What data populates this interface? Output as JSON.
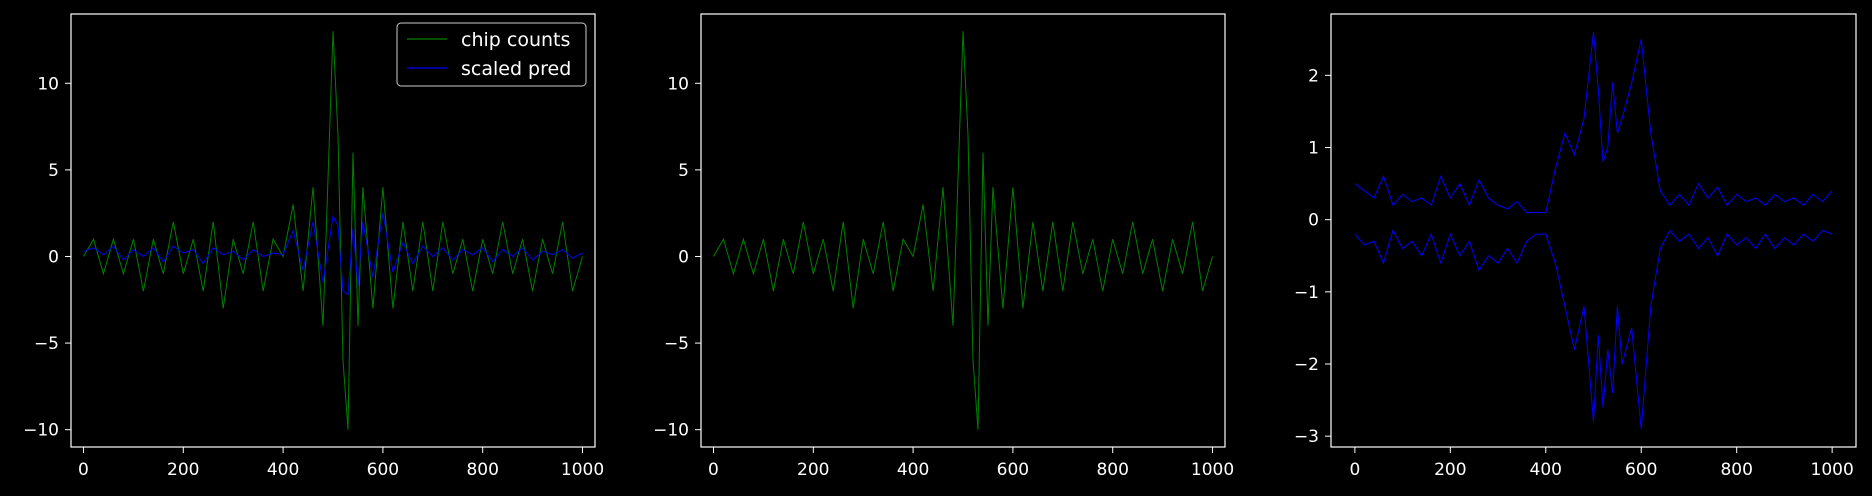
{
  "chart_data": [
    {
      "type": "line",
      "xlim": [
        -25,
        1025
      ],
      "ylim": [
        -11,
        14
      ],
      "xticks": [
        0,
        200,
        400,
        600,
        800,
        1000
      ],
      "yticks": [
        -10,
        -5,
        0,
        5,
        10
      ],
      "grid": false,
      "legend": "top-right",
      "series": [
        {
          "name": "chip counts",
          "color": "#008000",
          "values_ref": "chip_counts"
        },
        {
          "name": "scaled pred",
          "color": "#0000ff",
          "values_ref": "scaled_pred"
        }
      ]
    },
    {
      "type": "line",
      "xlim": [
        -25,
        1025
      ],
      "ylim": [
        -11,
        14
      ],
      "xticks": [
        0,
        200,
        400,
        600,
        800,
        1000
      ],
      "yticks": [
        -10,
        -5,
        0,
        5,
        10
      ],
      "grid": false,
      "series": [
        {
          "color": "#008000",
          "values_ref": "chip_counts"
        }
      ]
    },
    {
      "type": "line",
      "xlim": [
        -50,
        1050
      ],
      "ylim": [
        -3.15,
        2.85
      ],
      "xticks": [
        0,
        200,
        400,
        600,
        800,
        1000
      ],
      "yticks": [
        -3,
        -2,
        -1,
        0,
        1,
        2
      ],
      "grid": false,
      "series": [
        {
          "color": "#0000ff",
          "values_ref": "pred_upper"
        },
        {
          "color": "#0000ff",
          "values_ref": "pred_lower"
        }
      ]
    }
  ],
  "data_series": {
    "x": [
      0,
      20,
      40,
      60,
      80,
      100,
      120,
      140,
      160,
      180,
      200,
      220,
      240,
      260,
      280,
      300,
      320,
      340,
      360,
      380,
      400,
      420,
      440,
      460,
      480,
      500,
      510,
      520,
      530,
      540,
      550,
      560,
      580,
      600,
      620,
      640,
      660,
      680,
      700,
      720,
      740,
      760,
      780,
      800,
      820,
      840,
      860,
      880,
      900,
      920,
      940,
      960,
      980,
      1000
    ],
    "chip_counts": [
      0,
      1,
      -1,
      1,
      -1,
      1,
      -2,
      1,
      -1,
      2,
      -1,
      1,
      -2,
      2,
      -3,
      1,
      -1,
      2,
      -2,
      1,
      0,
      3,
      -2,
      4,
      -4,
      13,
      7,
      -6,
      -10,
      6,
      -4,
      4,
      -3,
      4,
      -3,
      2,
      -2,
      2,
      -2,
      2,
      -1,
      1,
      -2,
      1,
      -1,
      2,
      -1,
      1,
      -2,
      1,
      -1,
      2,
      -2,
      0
    ],
    "scaled_pred": [
      0.3,
      0.5,
      0.1,
      0.6,
      -0.2,
      0.4,
      0.0,
      0.5,
      -0.3,
      0.6,
      0.2,
      0.4,
      -0.4,
      0.5,
      0.1,
      0.3,
      -0.2,
      0.4,
      0.0,
      0.2,
      0.1,
      1.5,
      -0.8,
      2.0,
      -1.5,
      2.3,
      1.8,
      -2.0,
      -2.2,
      1.6,
      -1.7,
      2.0,
      -1.2,
      2.5,
      -0.9,
      0.8,
      -0.4,
      0.6,
      0.0,
      0.5,
      -0.2,
      0.4,
      0.1,
      0.5,
      -0.3,
      0.4,
      0.0,
      0.5,
      -0.2,
      0.3,
      0.1,
      0.4,
      -0.1,
      0.2
    ],
    "pred_upper": [
      0.5,
      0.4,
      0.3,
      0.6,
      0.2,
      0.35,
      0.25,
      0.3,
      0.2,
      0.6,
      0.3,
      0.5,
      0.2,
      0.55,
      0.3,
      0.2,
      0.15,
      0.25,
      0.1,
      0.1,
      0.1,
      0.7,
      1.2,
      0.9,
      1.4,
      2.6,
      1.8,
      0.8,
      1.0,
      1.9,
      1.2,
      1.4,
      1.9,
      2.5,
      1.2,
      0.4,
      0.2,
      0.35,
      0.2,
      0.5,
      0.3,
      0.45,
      0.2,
      0.35,
      0.25,
      0.3,
      0.2,
      0.35,
      0.25,
      0.3,
      0.2,
      0.35,
      0.25,
      0.4
    ],
    "pred_lower": [
      -0.2,
      -0.35,
      -0.3,
      -0.6,
      -0.15,
      -0.4,
      -0.3,
      -0.5,
      -0.2,
      -0.6,
      -0.2,
      -0.5,
      -0.3,
      -0.7,
      -0.5,
      -0.6,
      -0.4,
      -0.6,
      -0.3,
      -0.2,
      -0.2,
      -0.6,
      -1.2,
      -1.8,
      -1.2,
      -2.8,
      -1.6,
      -2.6,
      -1.8,
      -2.4,
      -1.2,
      -2.0,
      -1.5,
      -2.9,
      -1.2,
      -0.4,
      -0.15,
      -0.3,
      -0.2,
      -0.4,
      -0.25,
      -0.5,
      -0.2,
      -0.35,
      -0.25,
      -0.4,
      -0.2,
      -0.4,
      -0.25,
      -0.35,
      -0.2,
      -0.3,
      -0.15,
      -0.2
    ]
  }
}
